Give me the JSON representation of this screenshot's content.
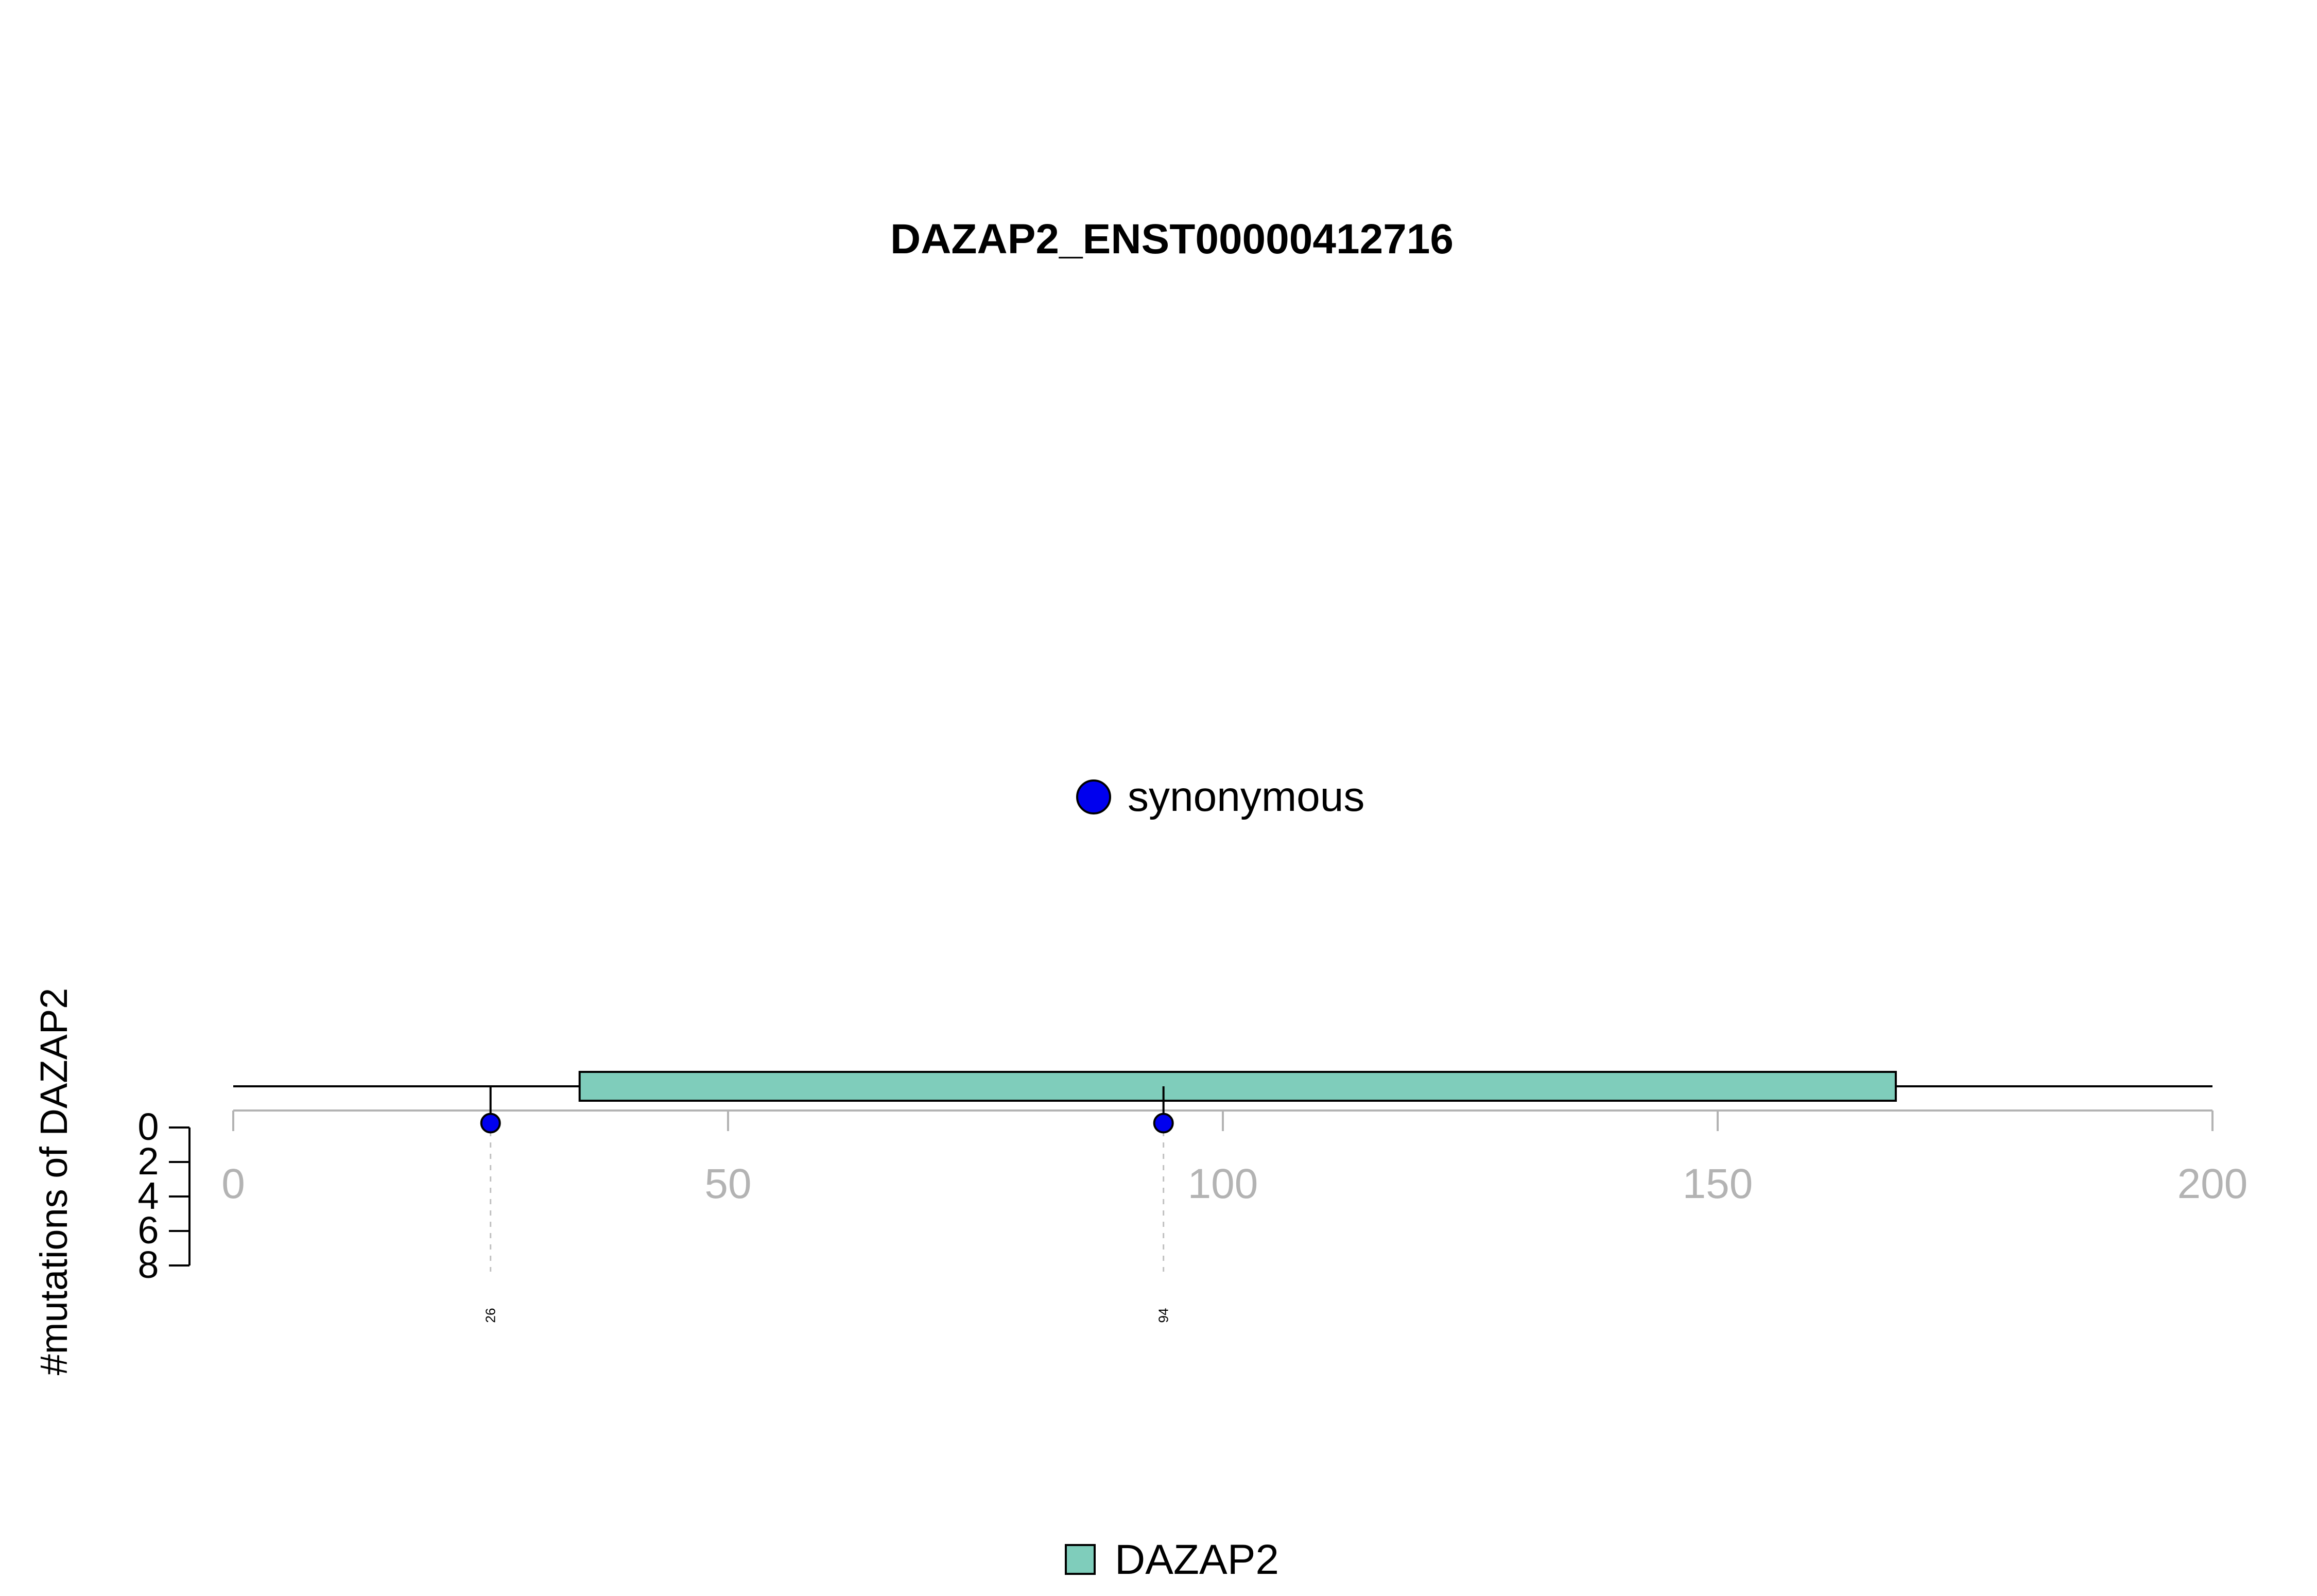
{
  "chart_data": {
    "type": "lollipop",
    "title": "DAZAP2_ENST00000412716",
    "ylabel": "#mutations of DAZAP2",
    "xlim": [
      0,
      200
    ],
    "x_ticks": [
      "0",
      "50",
      "100",
      "150",
      "200"
    ],
    "x_tick_values": [
      0,
      50,
      100,
      150,
      200
    ],
    "y_ticks": [
      "0",
      "2",
      "4",
      "6",
      "8"
    ],
    "y_tick_values": [
      0,
      2,
      4,
      6,
      8
    ],
    "ylim": [
      0,
      8
    ],
    "protein_length": 200,
    "domains": [
      {
        "name": "DAZAP2",
        "start": 35,
        "end": 168,
        "color": "#7fcdbb"
      }
    ],
    "mutations": [
      {
        "position": 26,
        "label": "26",
        "count": 1,
        "type": "synonymous",
        "color": "#0000ee"
      },
      {
        "position": 94,
        "label": "94",
        "count": 1,
        "type": "synonymous",
        "color": "#0000ee"
      }
    ],
    "mutation_legend": [
      {
        "label": "synonymous",
        "color": "#0000ee"
      }
    ],
    "domain_legend": [
      {
        "label": "DAZAP2",
        "color": "#7fcdbb"
      }
    ]
  }
}
